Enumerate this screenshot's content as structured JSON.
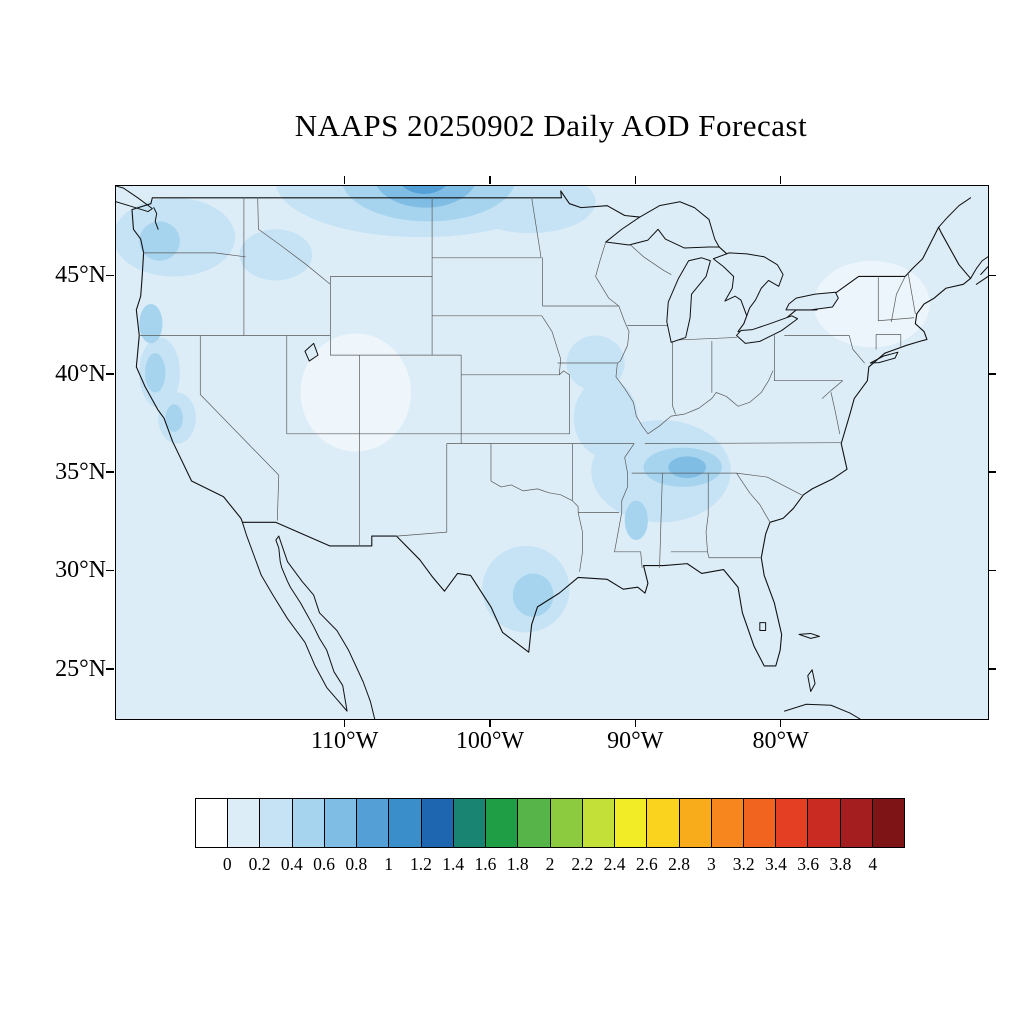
{
  "title": "NAAPS 20250902 Daily AOD Forecast",
  "chart_data": {
    "type": "heatmap",
    "subtype": "filled-contour-geographic-map",
    "model": "NAAPS",
    "forecast_date": "20250902",
    "quantity": "Daily AOD Forecast",
    "region": "Continental United States and surroundings",
    "map_extent": {
      "lon_min": -125.8,
      "lon_max": -65.8,
      "lat_min": 22.5,
      "lat_max": 49.6
    },
    "lat_ticks": [
      {
        "value": 45,
        "label": "45°N"
      },
      {
        "value": 40,
        "label": "40°N"
      },
      {
        "value": 35,
        "label": "35°N"
      },
      {
        "value": 30,
        "label": "30°N"
      },
      {
        "value": 25,
        "label": "25°N"
      }
    ],
    "lon_ticks": [
      {
        "value": -110,
        "label": "110°W"
      },
      {
        "value": -100,
        "label": "100°W"
      },
      {
        "value": -90,
        "label": "90°W"
      },
      {
        "value": -80,
        "label": "80°W"
      }
    ],
    "colorbar": {
      "min": 0,
      "max": 4,
      "step": 0.2,
      "tick_labels": [
        "0",
        "0.2",
        "0.4",
        "0.6",
        "0.8",
        "1",
        "1.2",
        "1.4",
        "1.6",
        "1.8",
        "2",
        "2.2",
        "2.4",
        "2.6",
        "2.8",
        "3",
        "3.2",
        "3.4",
        "3.6",
        "3.8",
        "4"
      ],
      "colors": [
        "#FFFFFF",
        "#DCEDF8",
        "#C6E3F5",
        "#A6D4EF",
        "#7FBDE4",
        "#549FD6",
        "#3A8EC9",
        "#1F66B0",
        "#188471",
        "#1F9E45",
        "#57B449",
        "#8CCB40",
        "#C3E038",
        "#F2EC27",
        "#FAD31E",
        "#F9AC1B",
        "#F6861D",
        "#F1641F",
        "#E43F22",
        "#C92A22",
        "#A51E1F",
        "#7E1416"
      ]
    },
    "aod_features": [
      {
        "area": "Northern Plains / Canadian border (Montana–North Dakota–Saskatchewan plume)",
        "approx_lon": -104,
        "approx_lat": 49,
        "peak_aod": 1.0
      },
      {
        "area": "Pacific Northwest (Washington–Oregon)",
        "approx_lon": -122.5,
        "approx_lat": 45,
        "peak_aod": 0.6
      },
      {
        "area": "Northern / central California",
        "approx_lon": -122,
        "approx_lat": 38,
        "peak_aod": 0.6
      },
      {
        "area": "Tennessee Valley (Tennessee–Kentucky–northern Alabama)",
        "approx_lon": -86.5,
        "approx_lat": 35.3,
        "peak_aod": 0.8
      },
      {
        "area": "Lower Mississippi Valley (Arkansas–Mississippi)",
        "approx_lon": -91,
        "approx_lat": 34,
        "peak_aod": 0.4
      },
      {
        "area": "South-central Texas / Gulf coast",
        "approx_lon": -97,
        "approx_lat": 28.5,
        "peak_aod": 0.6
      },
      {
        "area": "Missouri / Iowa",
        "approx_lon": -93.5,
        "approx_lat": 39.5,
        "peak_aod": 0.4
      },
      {
        "area": "Background over CONUS and offshore waters",
        "peak_aod": 0.2
      }
    ]
  }
}
